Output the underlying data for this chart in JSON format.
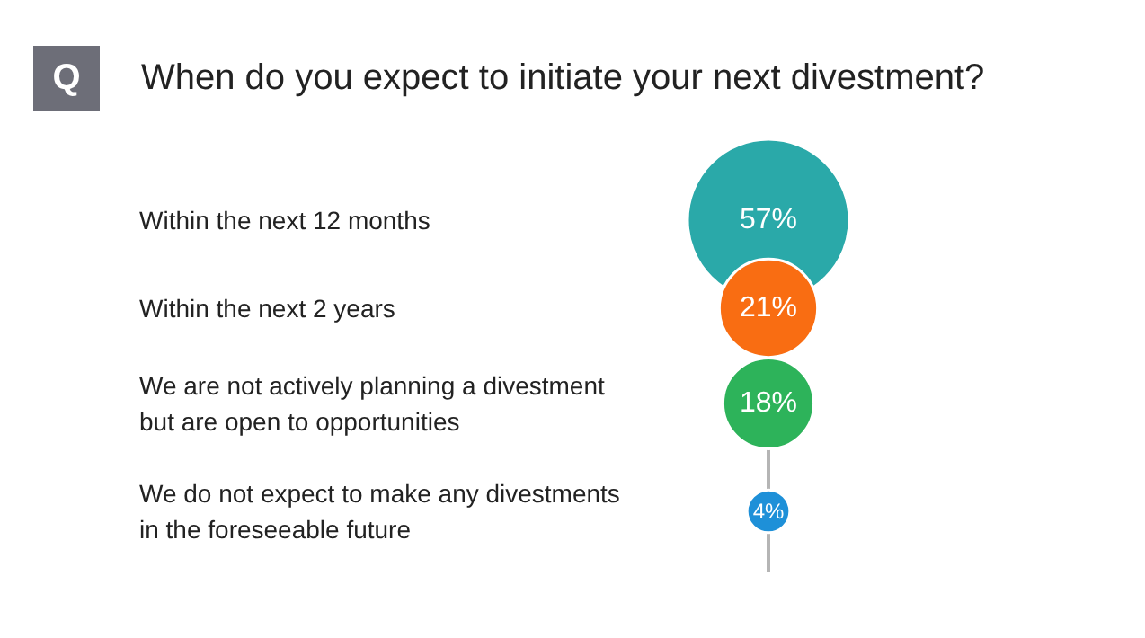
{
  "chart_data": {
    "type": "other",
    "title": "When do you expect to initiate your next divestment?",
    "annotations": [
      "Q"
    ],
    "categories": [
      "Within the next 12 months",
      "Within the next 2 years",
      "We are not actively planning a divestment but are open to opportunities",
      "We do not expect to make any divestments in the foreseeable future"
    ],
    "values": [
      57,
      21,
      18,
      4
    ],
    "value_labels": [
      "57%",
      "21%",
      "18%",
      "4%"
    ],
    "colors": [
      "#2aa9a9",
      "#f96d12",
      "#2db35a",
      "#1e90d8"
    ]
  }
}
